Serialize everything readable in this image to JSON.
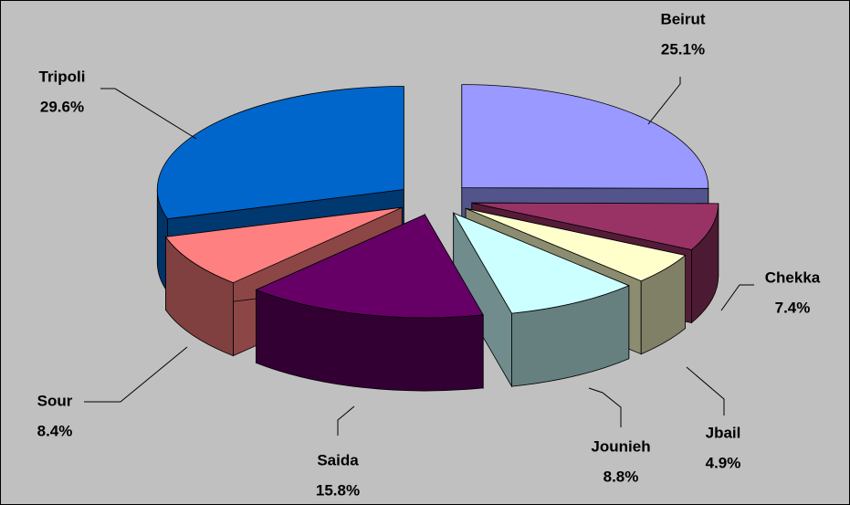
{
  "chart_data": {
    "type": "pie",
    "categories": [
      "Beirut",
      "Chekka",
      "Jbail",
      "Jounieh",
      "Saida",
      "Sour",
      "Tripoli"
    ],
    "values": [
      25.1,
      7.4,
      4.9,
      8.8,
      15.8,
      8.4,
      29.6
    ],
    "value_labels": [
      "25.1%",
      "7.4%",
      "4.9%",
      "8.8%",
      "15.8%",
      "8.4%",
      "29.6%"
    ],
    "colors": [
      "#9999ff",
      "#993366",
      "#ffffcc",
      "#ccffff",
      "#660066",
      "#ff8080",
      "#0066cc"
    ]
  }
}
